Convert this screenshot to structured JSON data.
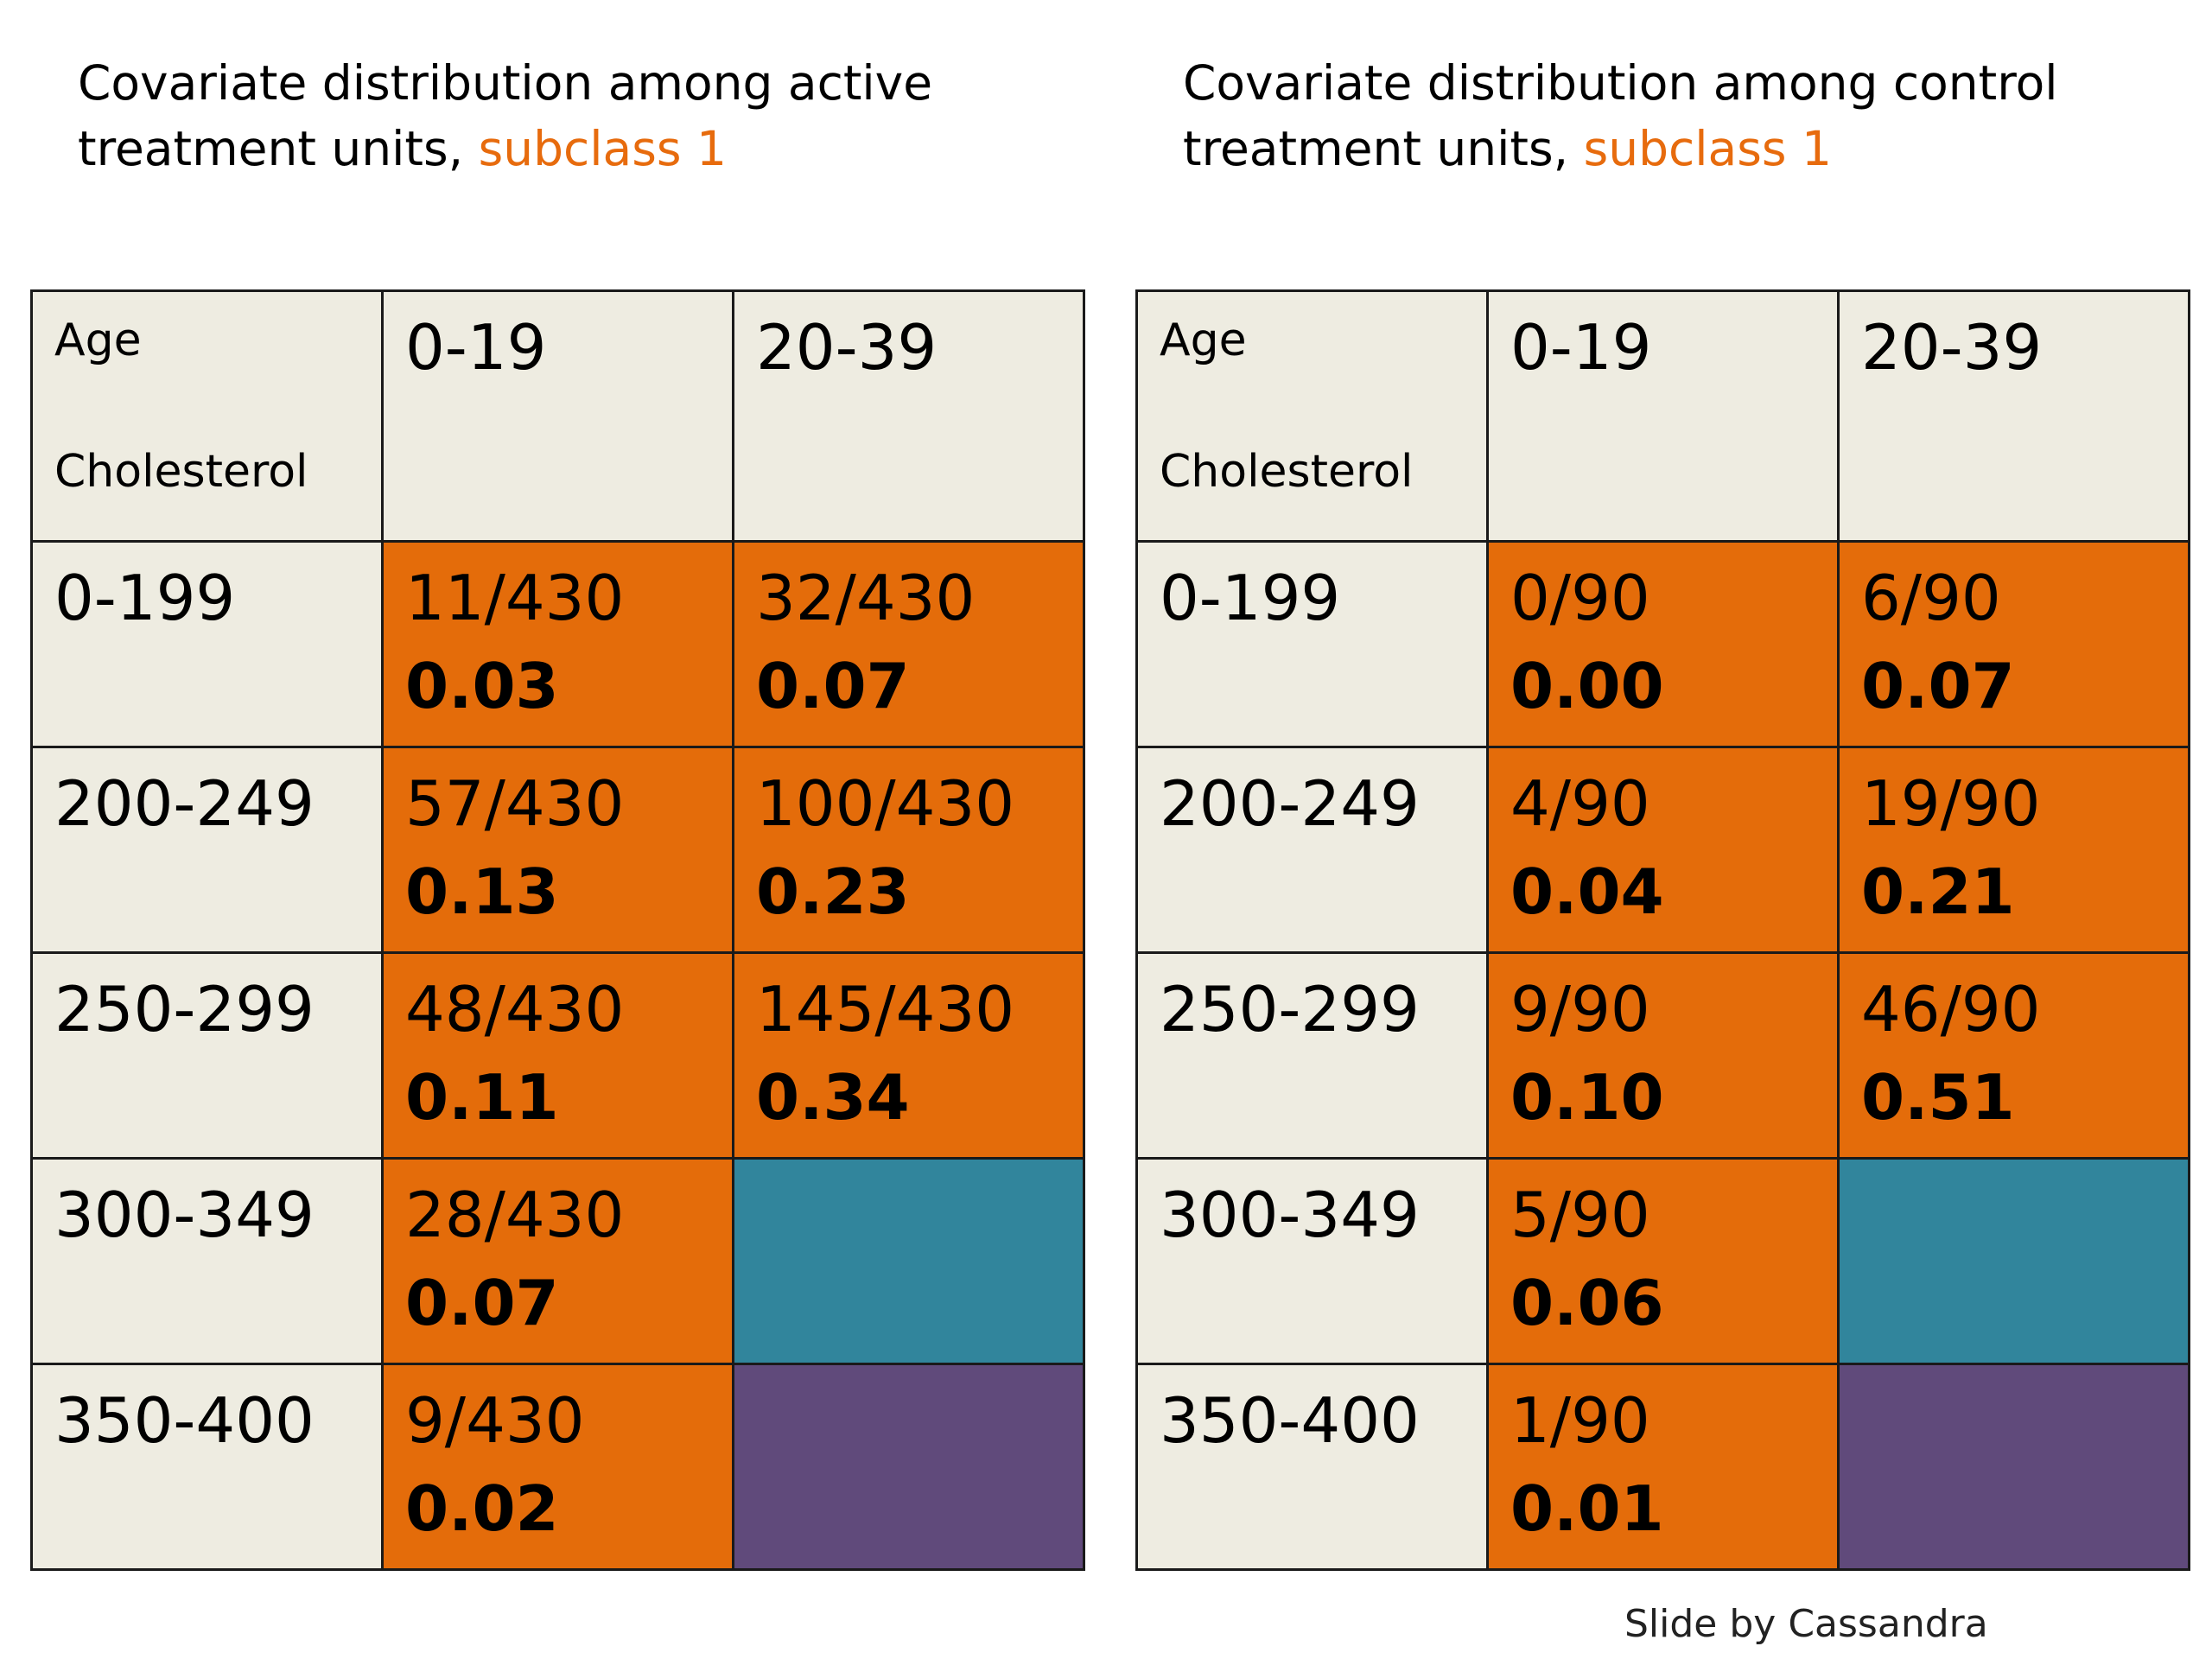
{
  "colors": {
    "label_cell": "#eeece1",
    "filled_cell": "#e46c0a",
    "teal_cell": "#31859c",
    "purple_cell": "#604a7b",
    "accent_text": "#e76b0d"
  },
  "panels": [
    {
      "caption_line1": "Covariate distribution among active",
      "caption_line2_prefix": "treatment units, ",
      "caption_accent": "subclass 1",
      "axis_age": "Age",
      "axis_cholesterol": "Cholesterol",
      "columns": [
        "0-19",
        "20-39"
      ],
      "rows": [
        {
          "label": "0-199",
          "cells": [
            {
              "frac": "11/430",
              "prop": "0.03"
            },
            {
              "frac": "32/430",
              "prop": "0.07"
            }
          ]
        },
        {
          "label": "200-249",
          "cells": [
            {
              "frac": "57/430",
              "prop": "0.13"
            },
            {
              "frac": "100/430",
              "prop": "0.23"
            }
          ]
        },
        {
          "label": "250-299",
          "cells": [
            {
              "frac": "48/430",
              "prop": "0.11"
            },
            {
              "frac": "145/430",
              "prop": "0.34"
            }
          ]
        },
        {
          "label": "300-349",
          "cells": [
            {
              "frac": "28/430",
              "prop": "0.07"
            },
            {
              "frac": "",
              "prop": ""
            }
          ]
        },
        {
          "label": "350-400",
          "cells": [
            {
              "frac": "9/430",
              "prop": "0.02"
            },
            {
              "frac": "",
              "prop": ""
            }
          ]
        }
      ]
    },
    {
      "caption_line1": "Covariate distribution among control",
      "caption_line2_prefix": "treatment units, ",
      "caption_accent": "subclass 1",
      "axis_age": "Age",
      "axis_cholesterol": "Cholesterol",
      "columns": [
        "0-19",
        "20-39"
      ],
      "rows": [
        {
          "label": "0-199",
          "cells": [
            {
              "frac": "0/90",
              "prop": "0.00"
            },
            {
              "frac": "6/90",
              "prop": "0.07"
            }
          ]
        },
        {
          "label": "200-249",
          "cells": [
            {
              "frac": "4/90",
              "prop": "0.04"
            },
            {
              "frac": "19/90",
              "prop": "0.21"
            }
          ]
        },
        {
          "label": "250-299",
          "cells": [
            {
              "frac": "9/90",
              "prop": "0.10"
            },
            {
              "frac": "46/90",
              "prop": "0.51"
            }
          ]
        },
        {
          "label": "300-349",
          "cells": [
            {
              "frac": "5/90",
              "prop": "0.06"
            },
            {
              "frac": "",
              "prop": ""
            }
          ]
        },
        {
          "label": "350-400",
          "cells": [
            {
              "frac": "1/90",
              "prop": "0.01"
            },
            {
              "frac": "",
              "prop": ""
            }
          ]
        }
      ]
    }
  ],
  "credit": "Slide by Cassandra"
}
